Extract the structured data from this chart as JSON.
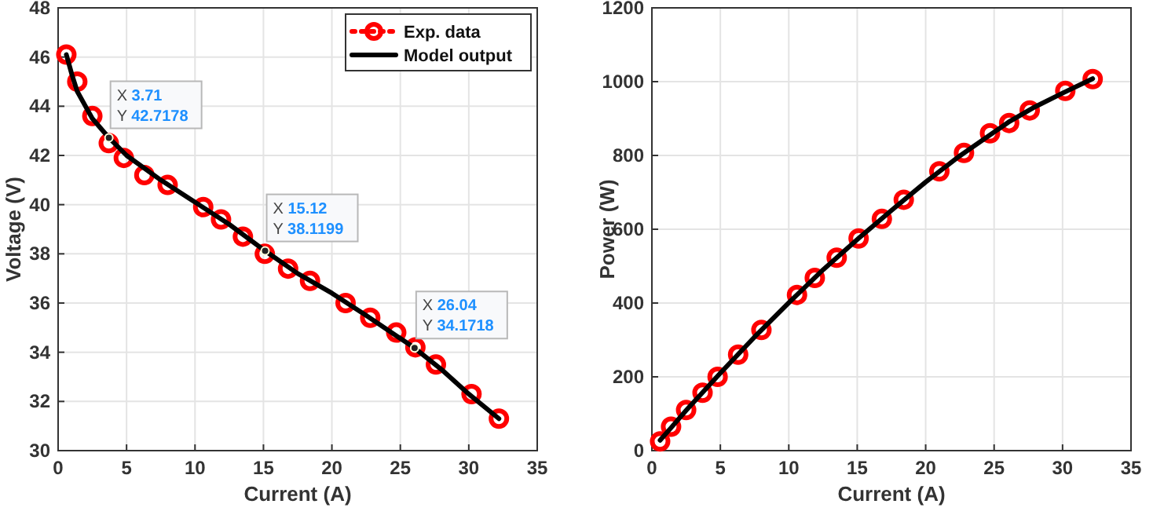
{
  "chart_data": [
    {
      "type": "line",
      "xlabel": "Current (A)",
      "ylabel": "Voltage (V)",
      "xlim": [
        0,
        35
      ],
      "xticks": [
        0,
        5,
        10,
        15,
        20,
        25,
        30,
        35
      ],
      "ylim": [
        30,
        48
      ],
      "yticks": [
        30,
        32,
        34,
        36,
        38,
        40,
        42,
        44,
        46,
        48
      ],
      "grid": true,
      "legend": "top right",
      "series": [
        {
          "name": "Exp. data",
          "type": "scatter",
          "color": "#ff0000",
          "marker": "circle",
          "line_style": "dotted",
          "x": [
            0.6,
            1.4,
            2.5,
            3.7,
            4.8,
            6.3,
            8.0,
            10.6,
            11.9,
            13.5,
            15.1,
            16.8,
            18.4,
            21.0,
            22.8,
            24.7,
            26.1,
            27.6,
            30.2,
            32.2
          ],
          "values": [
            46.1,
            45.0,
            43.6,
            42.5,
            41.9,
            41.2,
            40.8,
            39.9,
            39.4,
            38.7,
            38.0,
            37.4,
            36.9,
            36.0,
            35.4,
            34.8,
            34.2,
            33.5,
            32.3,
            31.3
          ]
        },
        {
          "name": "Model output",
          "color": "#000000",
          "marker": "none",
          "line_style": "solid",
          "x": [
            0.6,
            1.0,
            1.4,
            2.0,
            2.5,
            3.71,
            5,
            7.5,
            10,
            12.5,
            15.12,
            17.5,
            20,
            22.5,
            26.04,
            28,
            30,
            32.2
          ],
          "values": [
            46.1,
            45.3,
            44.6,
            44.0,
            43.5,
            42.72,
            42.0,
            41.0,
            40.1,
            39.2,
            38.12,
            37.2,
            36.4,
            35.5,
            34.17,
            33.3,
            32.3,
            31.3
          ]
        }
      ],
      "annotations": [
        {
          "text": "X 3.71\nY 42.7178",
          "x": 3.71,
          "y": 42.7178
        },
        {
          "text": "X 15.12\nY 38.1199",
          "x": 15.12,
          "y": 38.1199
        },
        {
          "text": "X 26.04\nY 34.1718",
          "x": 26.04,
          "y": 34.1718
        }
      ]
    },
    {
      "type": "line",
      "xlabel": "Current (A)",
      "ylabel": "Power (W)",
      "xlim": [
        0,
        35
      ],
      "xticks": [
        0,
        5,
        10,
        15,
        20,
        25,
        30,
        35
      ],
      "ylim": [
        0,
        1200
      ],
      "yticks": [
        0,
        200,
        400,
        600,
        800,
        1000,
        1200
      ],
      "grid": true,
      "series": [
        {
          "type": "scatter",
          "color": "#ff0000",
          "marker": "circle",
          "line_style": "dotted",
          "x": [
            0.6,
            1.4,
            2.5,
            3.7,
            4.8,
            6.3,
            8.0,
            10.6,
            11.9,
            13.5,
            15.1,
            16.8,
            18.4,
            21.0,
            22.8,
            24.7,
            26.1,
            27.6,
            30.2,
            32.2
          ],
          "values": [
            25,
            65,
            110,
            157,
            200,
            260,
            327,
            422,
            468,
            523,
            575,
            628,
            680,
            757,
            807,
            860,
            888,
            922,
            975,
            1007
          ]
        },
        {
          "color": "#000000",
          "marker": "none",
          "line_style": "solid",
          "x": [
            0.6,
            1.4,
            2.5,
            3.71,
            5,
            7.5,
            10,
            12.5,
            15.12,
            17.5,
            20,
            22.5,
            26.04,
            28,
            30,
            32.2
          ],
          "values": [
            28,
            62,
            109,
            158,
            210,
            308,
            401,
            490,
            576,
            651,
            728,
            799,
            890,
            932,
            969,
            1008
          ]
        }
      ]
    }
  ]
}
